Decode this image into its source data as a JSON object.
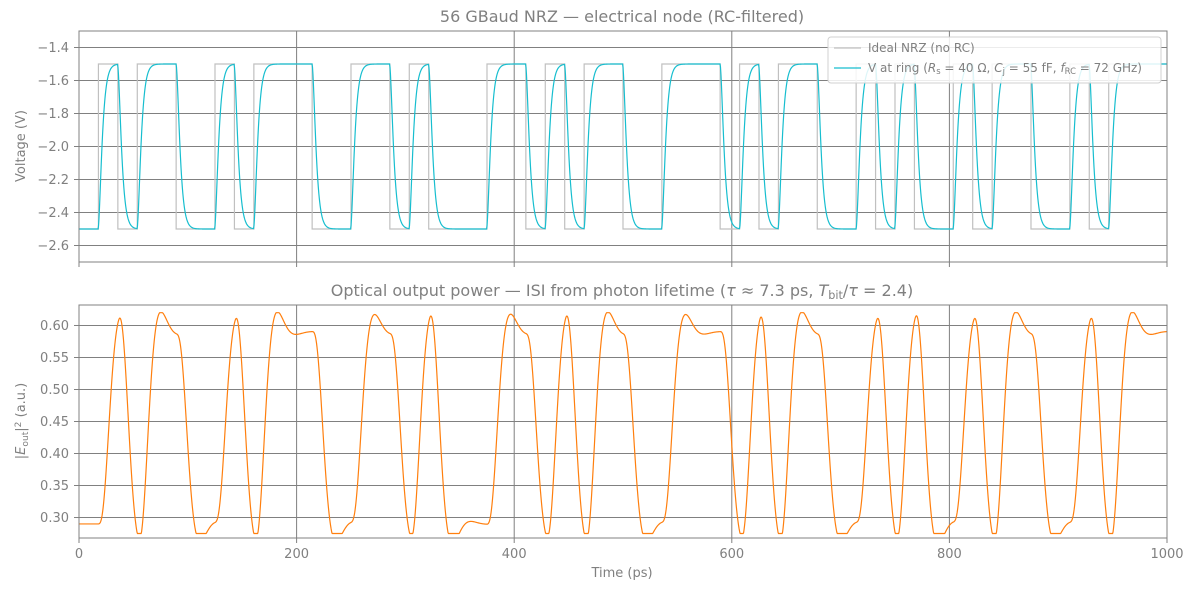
{
  "chart_data": [
    {
      "type": "line",
      "title": "56 GBaud NRZ — electrical node (RC-filtered)",
      "xlabel": "",
      "ylabel": "Voltage (V)",
      "xlim": [
        0,
        1000
      ],
      "ylim": [
        -2.7,
        -1.3
      ],
      "xticks": [
        0,
        200,
        400,
        600,
        800,
        1000
      ],
      "yticks": [
        -2.6,
        -2.4,
        -2.2,
        -2.0,
        -1.8,
        -1.6,
        -1.4
      ],
      "ytick_labels": [
        "−2.6",
        "−2.4",
        "−2.2",
        "−2.0",
        "−1.8",
        "−1.6",
        "−1.4"
      ],
      "grid": true,
      "legend_position": "top-right",
      "bit_period_ps": 17.857,
      "bits": [
        0,
        1,
        0,
        1,
        1,
        0,
        0,
        1,
        0,
        1,
        1,
        1,
        0,
        0,
        1,
        1,
        0,
        1,
        0,
        0,
        0,
        1,
        1,
        0,
        1,
        0,
        1,
        1,
        0,
        0,
        1,
        1,
        1,
        0,
        1,
        0,
        1,
        1,
        0,
        0,
        1,
        0,
        1,
        0,
        0,
        1,
        0,
        1,
        1,
        0,
        0,
        1,
        0,
        1,
        1,
        1
      ],
      "series": [
        {
          "name": "Ideal NRZ (no RC)",
          "color": "#c0c0c0",
          "levels": {
            "high": -1.5,
            "low": -2.5
          }
        },
        {
          "name": "V at ring (R_s = 40 Ω, C_j = 55 fF, f_RC = 72 GHz)",
          "color": "#17becf",
          "levels": {
            "high": -1.5,
            "low": -2.5
          },
          "rc_time_constant_ps": 2.2
        }
      ],
      "legend_entries": [
        {
          "text": "Ideal NRZ (no RC)",
          "color": "#c0c0c0"
        },
        {
          "text_parts": [
            "V at ring (",
            {
              "i": "R"
            },
            {
              "sub": "s"
            },
            " = 40 Ω, ",
            {
              "i": "C"
            },
            {
              "sub": "j"
            },
            " = 55 fF, ",
            {
              "i": "f"
            },
            {
              "sub": "RC"
            },
            " = 72 GHz)"
          ],
          "color": "#17becf"
        }
      ]
    },
    {
      "type": "line",
      "title": "Optical output power — ISI from photon lifetime (τ ≈ 7.3 ps, T_bit/τ = 2.4)",
      "title_parts": [
        "Optical output power — ISI from photon lifetime (",
        {
          "i": "τ"
        },
        " ≈ 7.3 ps, ",
        {
          "i": "T"
        },
        {
          "sub": "bit"
        },
        "/",
        {
          "i": "τ"
        },
        " = 2.4)"
      ],
      "xlabel": "Time (ps)",
      "ylabel": "|E_out|^2 (a.u.)",
      "ylabel_parts": [
        "|",
        {
          "i": "E"
        },
        {
          "sub": "out"
        },
        "|",
        {
          "sup": "2"
        },
        " (a.u.)"
      ],
      "xlim": [
        0,
        1000
      ],
      "ylim": [
        0.268,
        0.632
      ],
      "xticks": [
        0,
        200,
        400,
        600,
        800,
        1000
      ],
      "yticks": [
        0.3,
        0.35,
        0.4,
        0.45,
        0.5,
        0.55,
        0.6
      ],
      "ytick_labels": [
        "0.30",
        "0.35",
        "0.40",
        "0.45",
        "0.50",
        "0.55",
        "0.60"
      ],
      "grid": true,
      "series": [
        {
          "color": "#ff7f0e",
          "low_level": 0.29,
          "high_level": 0.59,
          "photon_lifetime_ps": 7.3
        }
      ]
    }
  ]
}
